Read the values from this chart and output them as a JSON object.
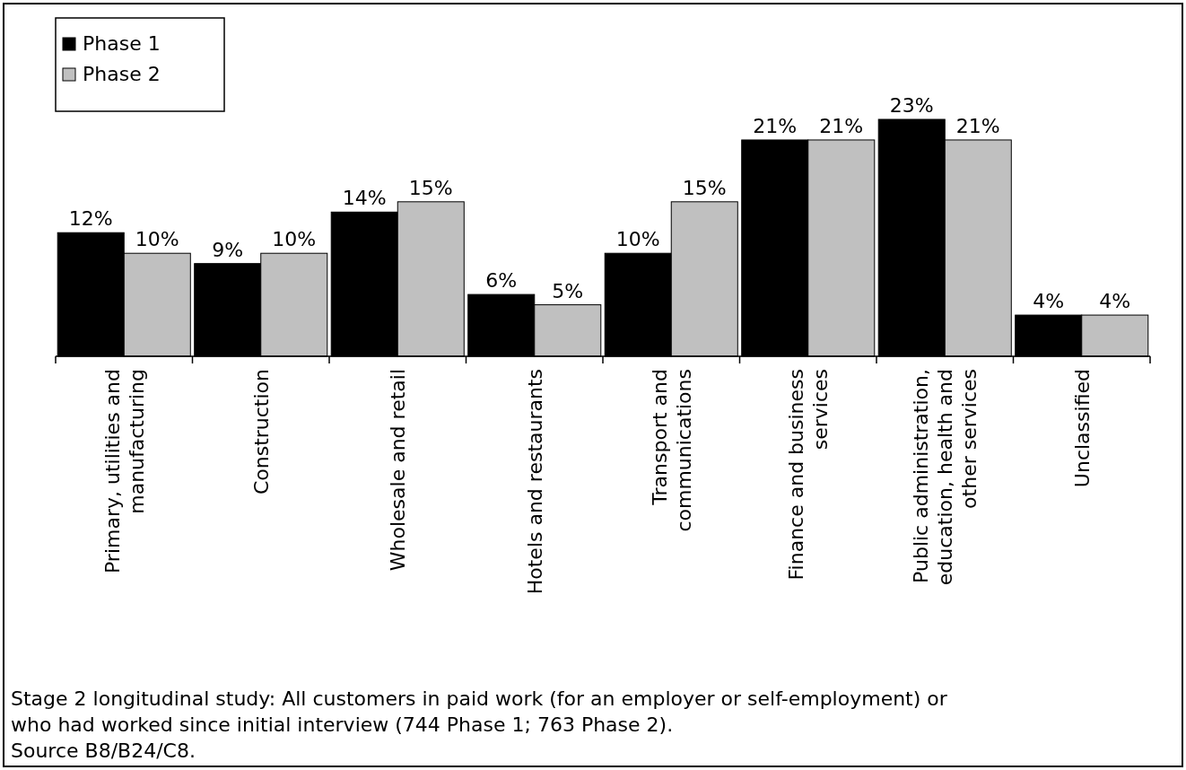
{
  "chart_data": {
    "type": "bar",
    "categories": [
      "Primary, utilities and manufacturing",
      "Construction",
      "Wholesale and retail",
      "Hotels and restaurants",
      "Transport and communications",
      "Finance and business services",
      "Public administration, education, health and other services",
      "Unclassified"
    ],
    "series": [
      {
        "name": "Phase 1",
        "color": "#000000",
        "values": [
          12,
          9,
          14,
          6,
          10,
          21,
          23,
          4
        ],
        "value_labels": [
          "12%",
          "9%",
          "14%",
          "6%",
          "10%",
          "21%",
          "23%",
          "4%"
        ]
      },
      {
        "name": "Phase 2",
        "color": "#c0c0c0",
        "values": [
          10,
          10,
          15,
          5,
          15,
          21,
          21,
          4
        ],
        "value_labels": [
          "10%",
          "10%",
          "15%",
          "5%",
          "15%",
          "21%",
          "21%",
          "4%"
        ]
      }
    ],
    "legend": "top left",
    "annotations": [
      "Stage 2 longitudinal study: All customers in paid work (for an employer or self-employment) or who had worked since initial interview (744 Phase 1; 763 Phase 2).",
      "Source B8/B24/C8."
    ]
  }
}
